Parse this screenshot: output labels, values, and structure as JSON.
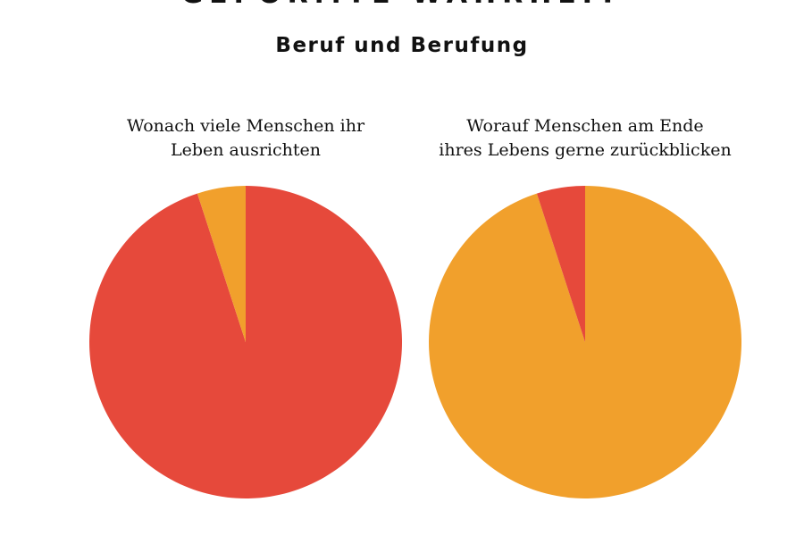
{
  "header": {
    "cropped_heading": "GEFORMTE WAHRHEIT",
    "subtitle": "Beruf und Berufung"
  },
  "colors": {
    "red": "#e6493b",
    "orange": "#f1a02c"
  },
  "chart_data": [
    {
      "type": "pie",
      "title_lines": [
        "Wonach viele Menschen ihr",
        "Leben ausrichten"
      ],
      "slices": [
        {
          "value": 95,
          "color": "#e6493b"
        },
        {
          "value": 5,
          "color": "#f1a02c"
        }
      ]
    },
    {
      "type": "pie",
      "title_lines": [
        "Worauf Menschen am Ende",
        "ihres Lebens gerne zurückblicken"
      ],
      "slices": [
        {
          "value": 95,
          "color": "#f1a02c"
        },
        {
          "value": 5,
          "color": "#e6493b"
        }
      ]
    }
  ]
}
